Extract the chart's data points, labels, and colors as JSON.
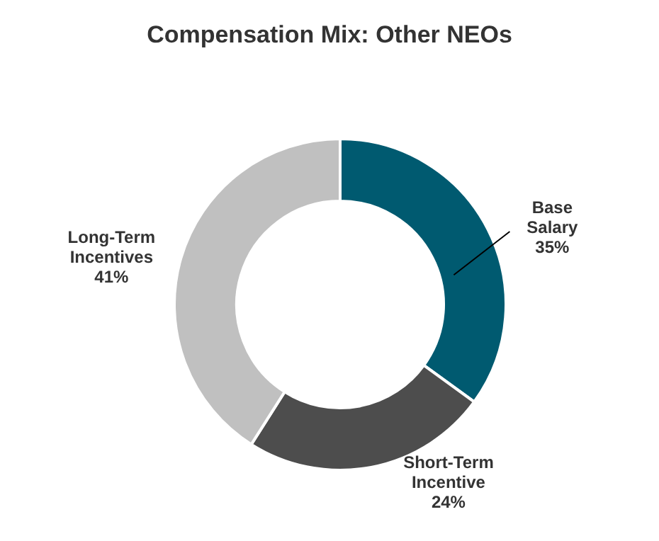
{
  "chart_data": {
    "type": "donut",
    "title": "Compensation Mix: Other NEOs",
    "categories": [
      "Base Salary",
      "Short-Term Incentive",
      "Long-Term Incentives"
    ],
    "values": [
      35,
      24,
      41
    ],
    "colors": [
      "#005a70",
      "#4d4d4d",
      "#c0c0c0"
    ],
    "value_labels": [
      "35%",
      "24%",
      "41%"
    ],
    "legend": false
  }
}
